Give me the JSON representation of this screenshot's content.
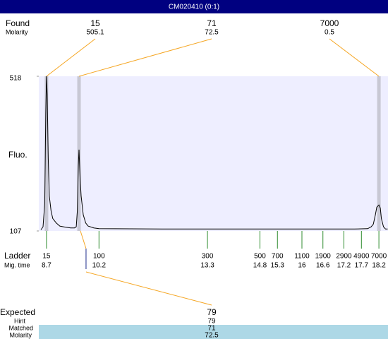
{
  "header": {
    "title": "CM020410 (0:1)"
  },
  "chart_data": {
    "type": "electropherogram",
    "y_label": "Fluo.",
    "ylim": [
      107,
      518
    ],
    "yticks": [
      518,
      107
    ],
    "xlim": [
      8.48,
      18.46
    ],
    "found": {
      "label": "Found",
      "molarity_label": "Molarity",
      "color": "#f5a623",
      "peaks": [
        {
          "size": 15,
          "molarity": 505.1,
          "time": 8.7
        },
        {
          "size": 71,
          "molarity": 72.5,
          "time": 9.63
        },
        {
          "size": 7000,
          "molarity": 0.5,
          "time": 18.2
        }
      ]
    },
    "ladder": {
      "label": "Ladder",
      "time_label": "Mig. time",
      "color": "#2e8b2e",
      "sizes": [
        15,
        100,
        300,
        500,
        700,
        1100,
        1900,
        2900,
        4900,
        7000
      ],
      "times": [
        8.7,
        10.2,
        13.3,
        14.8,
        15.3,
        16,
        16.6,
        17.2,
        17.7,
        18.2
      ]
    },
    "trace": {
      "color": "#000000",
      "x": [
        8.54,
        8.6,
        8.65,
        8.68,
        8.7,
        8.72,
        8.75,
        8.78,
        8.83,
        8.88,
        8.98,
        9.08,
        9.25,
        9.39,
        9.5,
        9.55,
        9.58,
        9.61,
        9.63,
        9.66,
        9.69,
        9.75,
        9.82,
        9.89,
        10.05,
        10.2,
        12,
        14,
        16,
        17.5,
        17.88,
        17.98,
        18.04,
        18.1,
        18.14,
        18.2,
        18.24,
        18.27,
        18.33,
        18.39,
        18.45
      ],
      "y": [
        110,
        118,
        180,
        420,
        518,
        470,
        300,
        200,
        160,
        140,
        128,
        120,
        117,
        115,
        115,
        118,
        160,
        280,
        323,
        250,
        200,
        150,
        128,
        120,
        115,
        113,
        112,
        112,
        112,
        112,
        113,
        118,
        125,
        150,
        170,
        176,
        168,
        140,
        118,
        112,
        112
      ]
    },
    "expected": {
      "label": "Expected",
      "value": 79,
      "time": 9.83,
      "hint_color": "#1a2a8a",
      "hint_label": "Hint",
      "hint": 79,
      "matched_label": "Matched",
      "matched": 71,
      "molarity_label": "Molarity",
      "molarity": 72.5
    }
  }
}
